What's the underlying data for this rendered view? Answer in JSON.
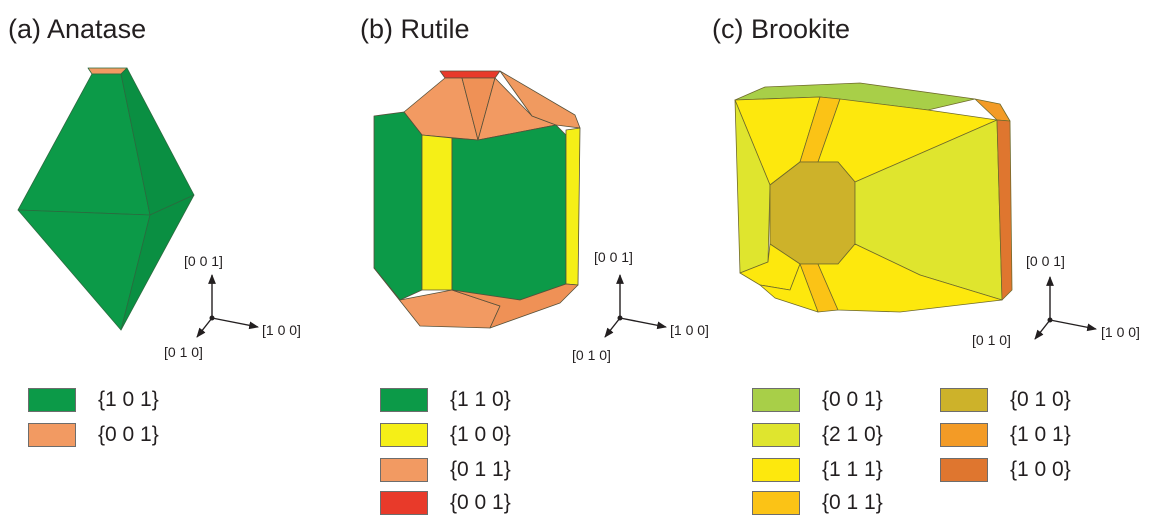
{
  "panels": [
    {
      "title": "(a) Anatase",
      "axes": {
        "z": "[0 0 1]",
        "x": "[1 0 0]",
        "y": "[0 1 0]"
      },
      "legend": [
        {
          "label": "{1 0 1}",
          "color": "#0c9a48"
        },
        {
          "label": "{0 0 1}",
          "color": "#f29a62"
        }
      ]
    },
    {
      "title": "(b) Rutile",
      "axes": {
        "z": "[0 0 1]",
        "x": "[1 0 0]",
        "y": "[0 1 0]"
      },
      "legend": [
        {
          "label": "{1 1 0}",
          "color": "#0c9a48"
        },
        {
          "label": "{1 0 0}",
          "color": "#f5ef17"
        },
        {
          "label": "{0 1 1}",
          "color": "#f29a62"
        },
        {
          "label": "{0 0 1}",
          "color": "#e83a2a"
        }
      ]
    },
    {
      "title": "(c) Brookite",
      "axes": {
        "z": "[0 0 1]",
        "x": "[1 0 0]",
        "y": "[0 1 0]"
      },
      "legend": [
        {
          "label": "{0 0 1}",
          "color": "#a8cf48"
        },
        {
          "label": "{2 1 0}",
          "color": "#dfe52e"
        },
        {
          "label": "{1 1 1}",
          "color": "#fde80d"
        },
        {
          "label": "{0 1 1}",
          "color": "#fbc316"
        },
        {
          "label": "{0 1 0}",
          "color": "#cdb22a"
        },
        {
          "label": "{1 0 1}",
          "color": "#f39b26"
        },
        {
          "label": "{1 0 0}",
          "color": "#df762f"
        }
      ]
    }
  ]
}
